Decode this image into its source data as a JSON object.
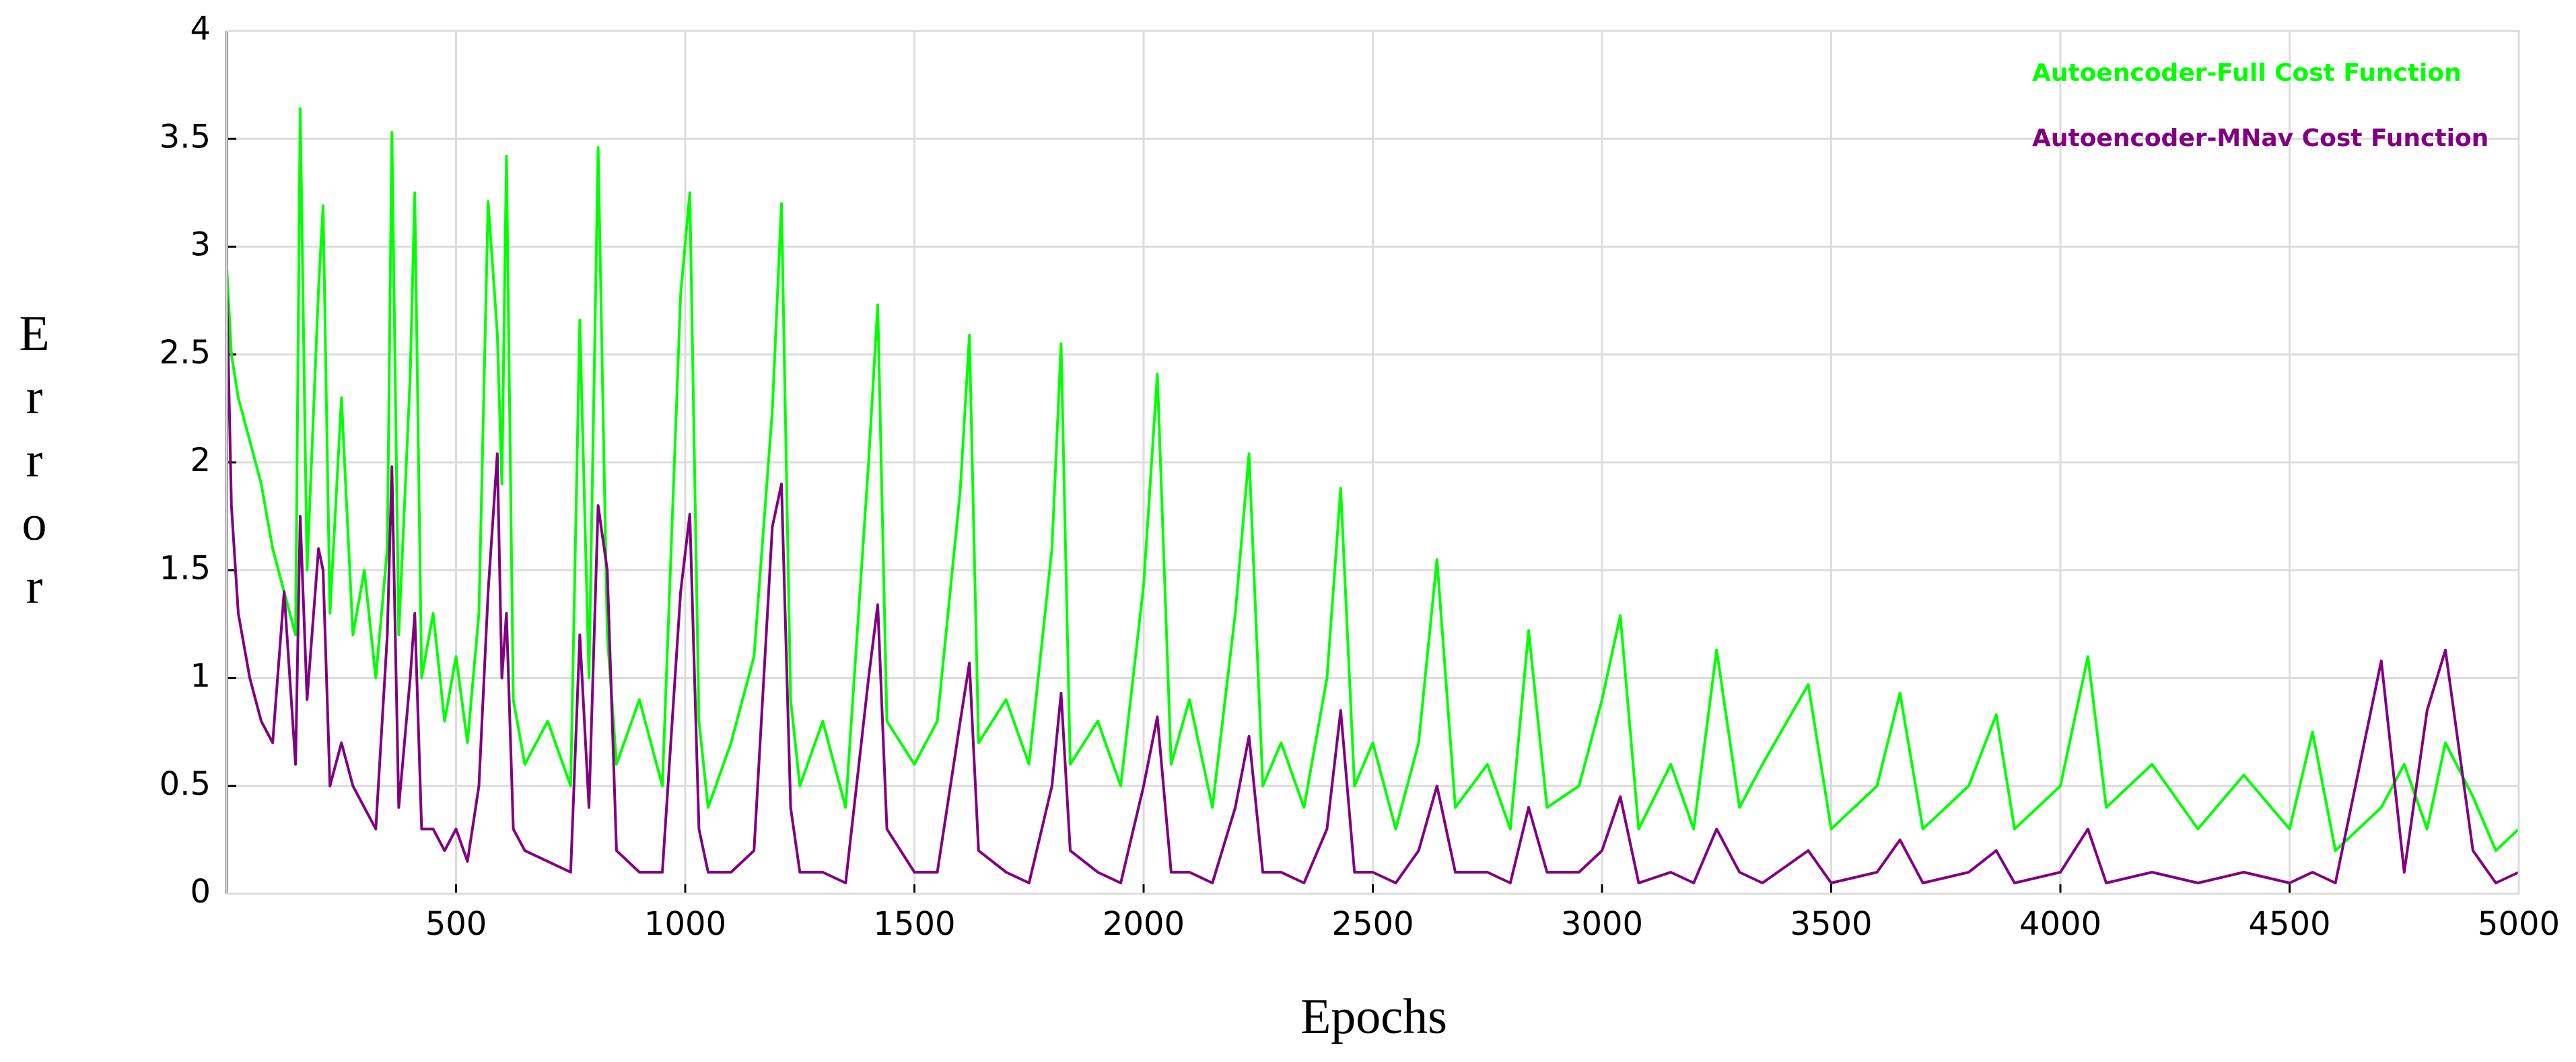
{
  "chart_data": {
    "type": "line",
    "xlabel": "Epochs",
    "ylabel": "Error",
    "xlim": [
      0,
      5000
    ],
    "xticks": [
      500,
      1000,
      1500,
      2000,
      2500,
      3000,
      3500,
      4000,
      4500,
      5000
    ],
    "ylim": [
      0,
      4
    ],
    "yticks": [
      0,
      0.5,
      1,
      1.5,
      2,
      2.5,
      3,
      3.5,
      4
    ],
    "grid": true,
    "legend": "upper right",
    "x": [
      0,
      10,
      25,
      50,
      75,
      100,
      125,
      150,
      160,
      175,
      200,
      210,
      225,
      250,
      275,
      300,
      325,
      350,
      360,
      375,
      400,
      410,
      425,
      450,
      475,
      500,
      525,
      550,
      570,
      590,
      600,
      610,
      625,
      650,
      700,
      750,
      770,
      790,
      810,
      830,
      850,
      900,
      950,
      990,
      1010,
      1030,
      1050,
      1100,
      1150,
      1190,
      1210,
      1230,
      1250,
      1300,
      1350,
      1400,
      1420,
      1440,
      1500,
      1550,
      1600,
      1620,
      1640,
      1700,
      1750,
      1800,
      1820,
      1840,
      1900,
      1950,
      2000,
      2030,
      2060,
      2100,
      2150,
      2200,
      2230,
      2260,
      2300,
      2350,
      2400,
      2430,
      2460,
      2500,
      2550,
      2600,
      2640,
      2680,
      2750,
      2800,
      2840,
      2880,
      2950,
      3000,
      3040,
      3080,
      3150,
      3200,
      3250,
      3300,
      3350,
      3450,
      3500,
      3600,
      3650,
      3700,
      3800,
      3860,
      3900,
      4000,
      4060,
      4100,
      4200,
      4300,
      4400,
      4500,
      4550,
      4600,
      4700,
      4750,
      4800,
      4840,
      4900,
      4950,
      5000
    ],
    "series": [
      {
        "name": "Autoencoder-Full Cost Function",
        "color": "#00ff00",
        "values": [
          2.9,
          2.5,
          2.3,
          2.1,
          1.9,
          1.6,
          1.4,
          1.2,
          3.64,
          1.5,
          2.8,
          3.19,
          1.3,
          2.3,
          1.2,
          1.5,
          1.0,
          1.6,
          3.53,
          1.2,
          2.4,
          3.25,
          1.0,
          1.3,
          0.8,
          1.1,
          0.7,
          1.3,
          3.21,
          2.6,
          1.9,
          3.42,
          0.9,
          0.6,
          0.8,
          0.5,
          2.66,
          1.0,
          3.46,
          1.2,
          0.6,
          0.9,
          0.5,
          2.78,
          3.25,
          0.8,
          0.4,
          0.7,
          1.1,
          2.24,
          3.2,
          0.9,
          0.5,
          0.8,
          0.4,
          2.0,
          2.73,
          0.8,
          0.6,
          0.8,
          1.87,
          2.59,
          0.7,
          0.9,
          0.6,
          1.6,
          2.55,
          0.6,
          0.8,
          0.5,
          1.43,
          2.41,
          0.6,
          0.9,
          0.4,
          1.3,
          2.04,
          0.5,
          0.7,
          0.4,
          1.0,
          1.88,
          0.5,
          0.7,
          0.3,
          0.7,
          1.55,
          0.4,
          0.6,
          0.3,
          1.22,
          0.4,
          0.5,
          0.9,
          1.29,
          0.3,
          0.6,
          0.3,
          1.13,
          0.4,
          0.6,
          0.97,
          0.3,
          0.5,
          0.93,
          0.3,
          0.5,
          0.83,
          0.3,
          0.5,
          1.1,
          0.4,
          0.6,
          0.3,
          0.55,
          0.3,
          0.75,
          0.2,
          0.4,
          0.6,
          0.3,
          0.7,
          0.45,
          0.2,
          0.3
        ]
      },
      {
        "name": "Autoencoder-MNav Cost Function",
        "color": "#800080",
        "values": [
          2.8,
          1.8,
          1.3,
          1.0,
          0.8,
          0.7,
          1.4,
          0.6,
          1.75,
          0.9,
          1.6,
          1.5,
          0.5,
          0.7,
          0.5,
          0.4,
          0.3,
          1.2,
          1.98,
          0.4,
          1.0,
          1.3,
          0.3,
          0.3,
          0.2,
          0.3,
          0.15,
          0.5,
          1.4,
          2.04,
          1.0,
          1.3,
          0.3,
          0.2,
          0.15,
          0.1,
          1.2,
          0.4,
          1.8,
          1.5,
          0.2,
          0.1,
          0.1,
          1.4,
          1.76,
          0.3,
          0.1,
          0.1,
          0.2,
          1.7,
          1.9,
          0.4,
          0.1,
          0.1,
          0.05,
          1.0,
          1.34,
          0.3,
          0.1,
          0.1,
          0.8,
          1.07,
          0.2,
          0.1,
          0.05,
          0.5,
          0.93,
          0.2,
          0.1,
          0.05,
          0.5,
          0.82,
          0.1,
          0.1,
          0.05,
          0.4,
          0.73,
          0.1,
          0.1,
          0.05,
          0.3,
          0.85,
          0.1,
          0.1,
          0.05,
          0.2,
          0.5,
          0.1,
          0.1,
          0.05,
          0.4,
          0.1,
          0.1,
          0.2,
          0.45,
          0.05,
          0.1,
          0.05,
          0.3,
          0.1,
          0.05,
          0.2,
          0.05,
          0.1,
          0.25,
          0.05,
          0.1,
          0.2,
          0.05,
          0.1,
          0.3,
          0.05,
          0.1,
          0.05,
          0.1,
          0.05,
          0.1,
          0.05,
          1.08,
          0.1,
          0.85,
          1.13,
          0.2,
          0.05,
          0.1
        ]
      }
    ]
  }
}
